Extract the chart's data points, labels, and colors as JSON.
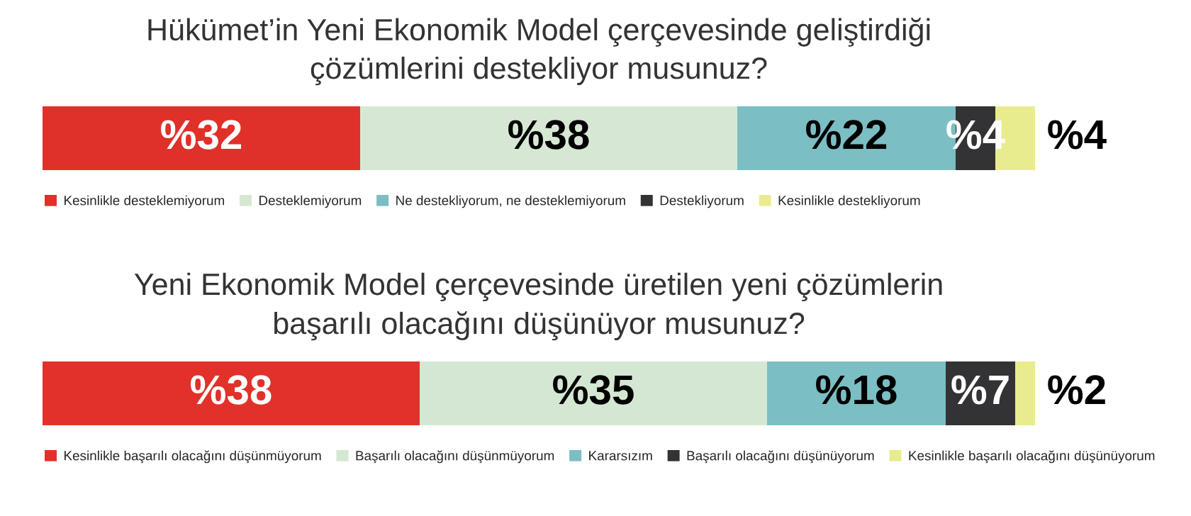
{
  "chart_data": [
    {
      "type": "bar",
      "orientation": "horizontal",
      "stacked": true,
      "title": "Hükümet’in Yeni Ekonomik Model çerçevesinde geliştirdiği\nçözümlerini destekliyor musunuz?",
      "categories": [
        null
      ],
      "legend": "bottom",
      "series": [
        {
          "name": "Kesinlikle desteklemiyorum",
          "color": "#e0302a",
          "values": [
            32
          ],
          "value_labels": [
            "%32"
          ]
        },
        {
          "name": "Desteklemiyorum",
          "color": "#d6e8d3",
          "values": [
            38
          ],
          "value_labels": [
            "%38"
          ]
        },
        {
          "name": "Ne destekliyorum, ne desteklemiyorum",
          "color": "#7bbec3",
          "values": [
            22
          ],
          "value_labels": [
            "%22"
          ]
        },
        {
          "name": "Destekliyorum",
          "color": "#333336",
          "values": [
            4
          ],
          "value_labels": [
            "%4"
          ]
        },
        {
          "name": "Kesinlikle destekliyorum",
          "color": "#e9ec8e",
          "values": [
            4
          ],
          "value_labels": [
            "%4"
          ]
        }
      ]
    },
    {
      "type": "bar",
      "orientation": "horizontal",
      "stacked": true,
      "title": "Yeni Ekonomik Model çerçevesinde üretilen yeni çözümlerin\nbaşarılı olacağını düşünüyor musunuz?",
      "categories": [
        null
      ],
      "legend": "bottom",
      "series": [
        {
          "name": "Kesinlikle başarılı olacağını düşünmüyorum",
          "color": "#e2312b",
          "values": [
            38
          ],
          "value_labels": [
            "%38"
          ]
        },
        {
          "name": "Başarılı olacağını düşünmüyorum",
          "color": "#d4e7d2",
          "values": [
            35
          ],
          "value_labels": [
            "%35"
          ]
        },
        {
          "name": "Kararsızım",
          "color": "#7bbec3",
          "values": [
            18
          ],
          "value_labels": [
            "%18"
          ]
        },
        {
          "name": "Başarılı olacağını düşünüyorum",
          "color": "#333336",
          "values": [
            7
          ],
          "value_labels": [
            "%7"
          ]
        },
        {
          "name": "Kesinlikle başarılı olacağını düşünüyorum",
          "color": "#e9ec8e",
          "values": [
            2
          ],
          "value_labels": [
            "%2"
          ]
        }
      ]
    }
  ]
}
